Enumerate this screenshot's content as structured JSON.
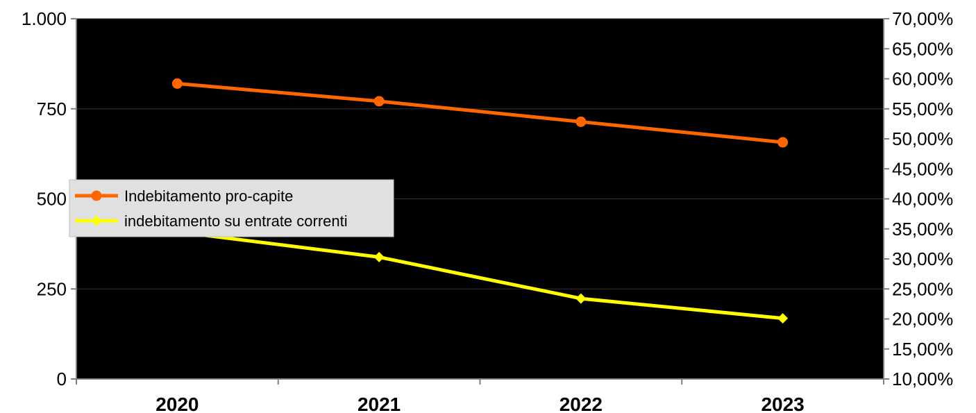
{
  "chart_data": {
    "type": "line",
    "title": "",
    "categories": [
      "2020",
      "2021",
      "2022",
      "2023"
    ],
    "series": [
      {
        "name": "Indebitamento pro-capite",
        "axis": "left",
        "values": [
          820,
          771,
          714,
          657
        ],
        "color": "#ff6600",
        "marker": "circle"
      },
      {
        "name": "indebitamento su entrate correnti",
        "axis": "right",
        "values": [
          0.345,
          0.303,
          0.234,
          0.201
        ],
        "color": "#ffff00",
        "marker": "diamond"
      }
    ],
    "left_axis": {
      "min": 0,
      "max": 1000,
      "ticks": [
        0,
        250,
        500,
        750,
        1000
      ],
      "tick_labels": [
        "0",
        "250",
        "500",
        "750",
        "1.000"
      ]
    },
    "right_axis": {
      "min": 0.1,
      "max": 0.7,
      "ticks": [
        0.1,
        0.15,
        0.2,
        0.25,
        0.3,
        0.35,
        0.4,
        0.45,
        0.5,
        0.55,
        0.6,
        0.65,
        0.7
      ],
      "tick_labels": [
        "10,00%",
        "15,00%",
        "20,00%",
        "25,00%",
        "30,00%",
        "35,00%",
        "40,00%",
        "45,00%",
        "50,00%",
        "55,00%",
        "60,00%",
        "65,00%",
        "70,00%"
      ]
    },
    "plot_background": "#000000",
    "grid": true,
    "grid_color": "#333333",
    "legend_position": "left",
    "legend_background": "#e0e0e0"
  }
}
